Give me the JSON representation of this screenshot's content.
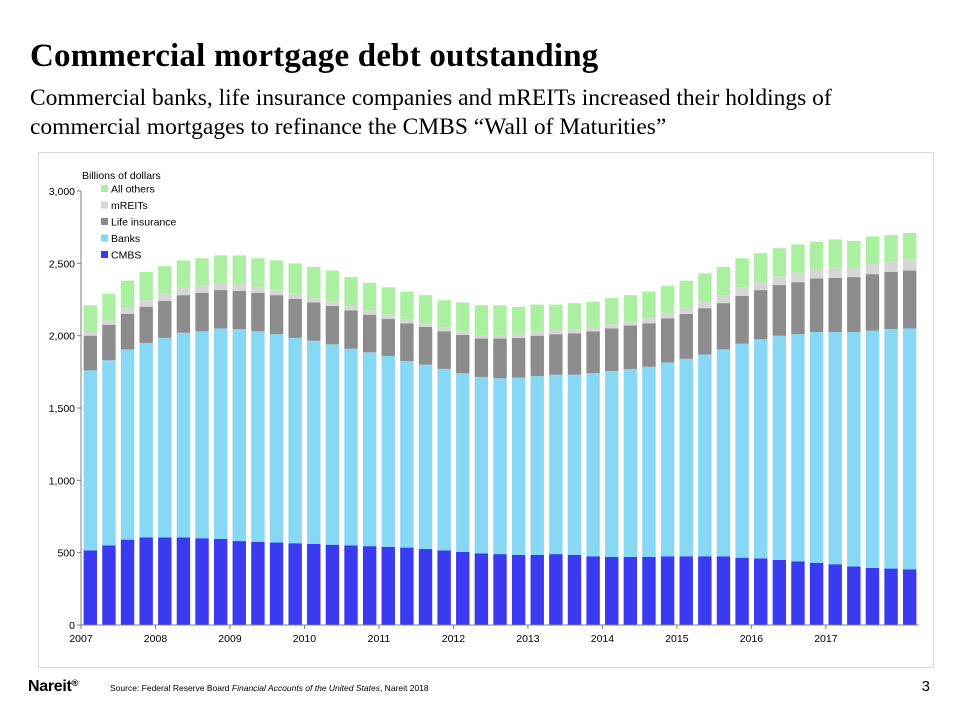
{
  "slide": {
    "title": "Commercial mortgage debt outstanding",
    "subtitle": "Commercial banks, life insurance companies and mREITs increased their holdings of commercial mortgages to refinance the CMBS “Wall of Maturities”",
    "logo": "Nareit",
    "logo_mark": "®",
    "source_prefix": "Source: Federal Reserve Board ",
    "source_italic": "Financial Accounts of the United States",
    "source_suffix": ", Nareit 2018",
    "page_number": "3"
  },
  "chart_data": {
    "type": "bar",
    "stacked": true,
    "ylabel": "Billions of dollars",
    "ylim": [
      0,
      3000
    ],
    "yticks": [
      0,
      500,
      1000,
      1500,
      2000,
      2500,
      3000
    ],
    "ytick_labels": [
      "0",
      "500",
      "1,000",
      "1,500",
      "2,000",
      "2,500",
      "3,000"
    ],
    "grid": false,
    "legend_position": "top-left",
    "x_tick_labels": [
      "2007",
      "2008",
      "2009",
      "2010",
      "2011",
      "2012",
      "2013",
      "2014",
      "2015",
      "2016",
      "2017"
    ],
    "categories": [
      "2007 Q1",
      "2007 Q2",
      "2007 Q3",
      "2007 Q4",
      "2008 Q1",
      "2008 Q2",
      "2008 Q3",
      "2008 Q4",
      "2009 Q1",
      "2009 Q2",
      "2009 Q3",
      "2009 Q4",
      "2010 Q1",
      "2010 Q2",
      "2010 Q3",
      "2010 Q4",
      "2011 Q1",
      "2011 Q2",
      "2011 Q3",
      "2011 Q4",
      "2012 Q1",
      "2012 Q2",
      "2012 Q3",
      "2012 Q4",
      "2013 Q1",
      "2013 Q2",
      "2013 Q3",
      "2013 Q4",
      "2014 Q1",
      "2014 Q2",
      "2014 Q3",
      "2014 Q4",
      "2015 Q1",
      "2015 Q2",
      "2015 Q3",
      "2015 Q4",
      "2016 Q1",
      "2016 Q2",
      "2016 Q3",
      "2016 Q4",
      "2017 Q1",
      "2017 Q2",
      "2017 Q3",
      "2017 Q4",
      "2018 Q1"
    ],
    "series": [
      {
        "name": "CMBS",
        "color": "#3a3af0",
        "values": [
          515,
          550,
          590,
          605,
          605,
          605,
          600,
          595,
          580,
          575,
          570,
          565,
          560,
          555,
          550,
          545,
          540,
          535,
          525,
          515,
          505,
          495,
          490,
          485,
          485,
          490,
          485,
          475,
          470,
          470,
          470,
          475,
          475,
          475,
          475,
          465,
          460,
          450,
          440,
          430,
          420,
          405,
          395,
          390,
          385
        ]
      },
      {
        "name": "Banks",
        "color": "#87d8f5",
        "values": [
          1245,
          1280,
          1315,
          1345,
          1380,
          1415,
          1430,
          1455,
          1465,
          1455,
          1440,
          1420,
          1405,
          1385,
          1360,
          1340,
          1320,
          1290,
          1275,
          1255,
          1235,
          1220,
          1215,
          1225,
          1235,
          1240,
          1245,
          1265,
          1285,
          1300,
          1315,
          1340,
          1365,
          1395,
          1430,
          1480,
          1515,
          1550,
          1570,
          1595,
          1605,
          1620,
          1640,
          1655,
          1665
        ]
      },
      {
        "name": "Life insurance",
        "color": "#8c8c8c",
        "values": [
          240,
          245,
          245,
          250,
          255,
          260,
          265,
          265,
          265,
          265,
          270,
          270,
          265,
          265,
          265,
          260,
          255,
          260,
          260,
          260,
          265,
          265,
          275,
          275,
          280,
          280,
          285,
          290,
          295,
          300,
          300,
          305,
          310,
          320,
          320,
          330,
          340,
          350,
          360,
          370,
          375,
          380,
          390,
          395,
          400
        ]
      },
      {
        "name": "mREITs",
        "color": "#d6d6d6",
        "values": [
          25,
          30,
          40,
          45,
          50,
          50,
          50,
          50,
          45,
          45,
          40,
          35,
          30,
          30,
          30,
          30,
          30,
          25,
          25,
          25,
          25,
          25,
          25,
          25,
          30,
          30,
          30,
          30,
          30,
          30,
          35,
          40,
          45,
          50,
          55,
          60,
          60,
          60,
          65,
          65,
          70,
          70,
          70,
          70,
          75
        ]
      },
      {
        "name": "All others",
        "color": "#aaf0a0",
        "values": [
          185,
          185,
          190,
          195,
          190,
          190,
          190,
          190,
          200,
          195,
          200,
          210,
          215,
          215,
          200,
          190,
          190,
          195,
          195,
          190,
          200,
          205,
          205,
          190,
          185,
          175,
          180,
          175,
          180,
          180,
          185,
          185,
          185,
          190,
          195,
          200,
          195,
          195,
          195,
          190,
          195,
          180,
          190,
          185,
          185
        ]
      }
    ]
  }
}
